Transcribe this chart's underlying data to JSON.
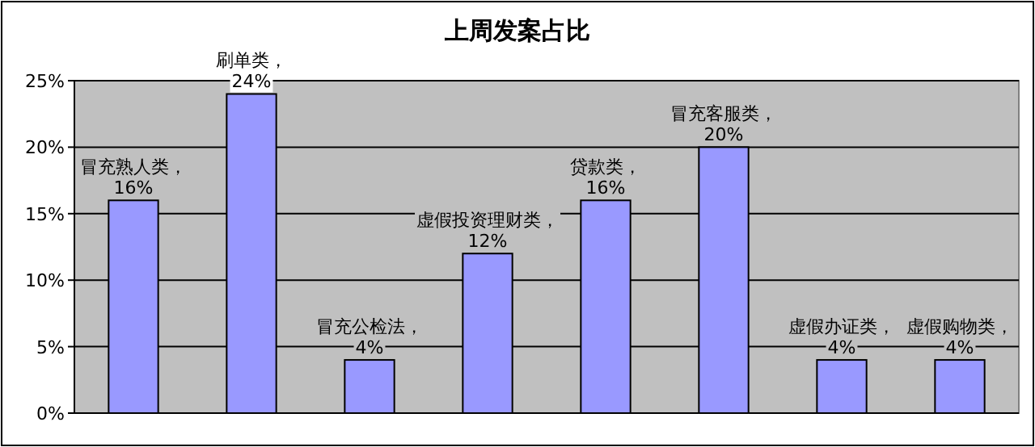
{
  "chart_data": {
    "type": "bar",
    "title": "上周发案占比",
    "categories": [
      null,
      null,
      null,
      null,
      null,
      null,
      null,
      null
    ],
    "values": [
      16,
      24,
      4,
      12,
      16,
      20,
      4,
      4
    ],
    "value_labels": [
      "冒充熟人类，16%",
      "刷单类，24%",
      "冒充公检法，4%",
      "虚假投资理财类，12%",
      "贷款类，16%",
      "冒充客服类，20%",
      "虚假办证类，4%",
      "虚假购物类，4%"
    ],
    "color": "#9999ff",
    "ylim": [
      0,
      25
    ],
    "yticks": [
      {
        "value": 0,
        "label": "0%"
      },
      {
        "value": 5,
        "label": "5%"
      },
      {
        "value": 10,
        "label": "10%"
      },
      {
        "value": 15,
        "label": "15%"
      },
      {
        "value": 20,
        "label": "20%"
      },
      {
        "value": 25,
        "label": "25%"
      }
    ],
    "grid": "y"
  }
}
